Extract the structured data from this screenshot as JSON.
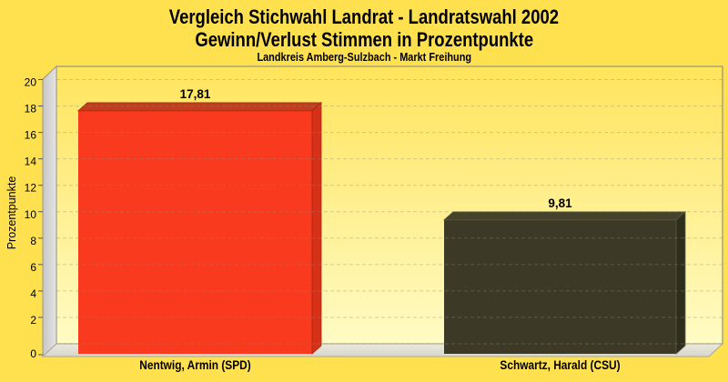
{
  "title": {
    "line1": "Vergleich Stichwahl Landrat - Landratswahl 2002",
    "line2": "Gewinn/Verlust Stimmen in Prozentpunkte",
    "line3": "Landkreis Amberg-Sulzbach - Markt Freihung"
  },
  "chart_data": {
    "type": "bar",
    "style": "3d-bars",
    "title": "Vergleich Stichwahl Landrat - Landratswahl 2002",
    "subtitle": "Gewinn/Verlust Stimmen in Prozentpunkte",
    "caption": "Landkreis Amberg-Sulzbach - Markt Freihung",
    "categories": [
      "Nentwig, Armin (SPD)",
      "Schwartz, Harald (CSU)"
    ],
    "values": [
      17.81,
      9.81
    ],
    "value_labels": [
      "17,81",
      "9,81"
    ],
    "xlabel": "",
    "ylabel": "Prozentpunkte",
    "ylim": [
      0,
      21
    ],
    "yticks": [
      0,
      2,
      4,
      6,
      8,
      10,
      12,
      14,
      16,
      18,
      20
    ],
    "grid": "dashed-horizontal",
    "legend": "none"
  },
  "colors": {
    "background": "#ffe14f",
    "plot_top": "#ffe45c",
    "plot_bottom": "#fffbc4",
    "grid": "#8f8a7d",
    "bars": [
      {
        "front": "#f93a1e",
        "top": "#c23c1e",
        "side": "#d53118",
        "edge": "#a02810"
      },
      {
        "front": "#3c3a26",
        "top": "#45432b",
        "side": "#2f2e1c",
        "edge": "#5c5a40"
      }
    ]
  }
}
